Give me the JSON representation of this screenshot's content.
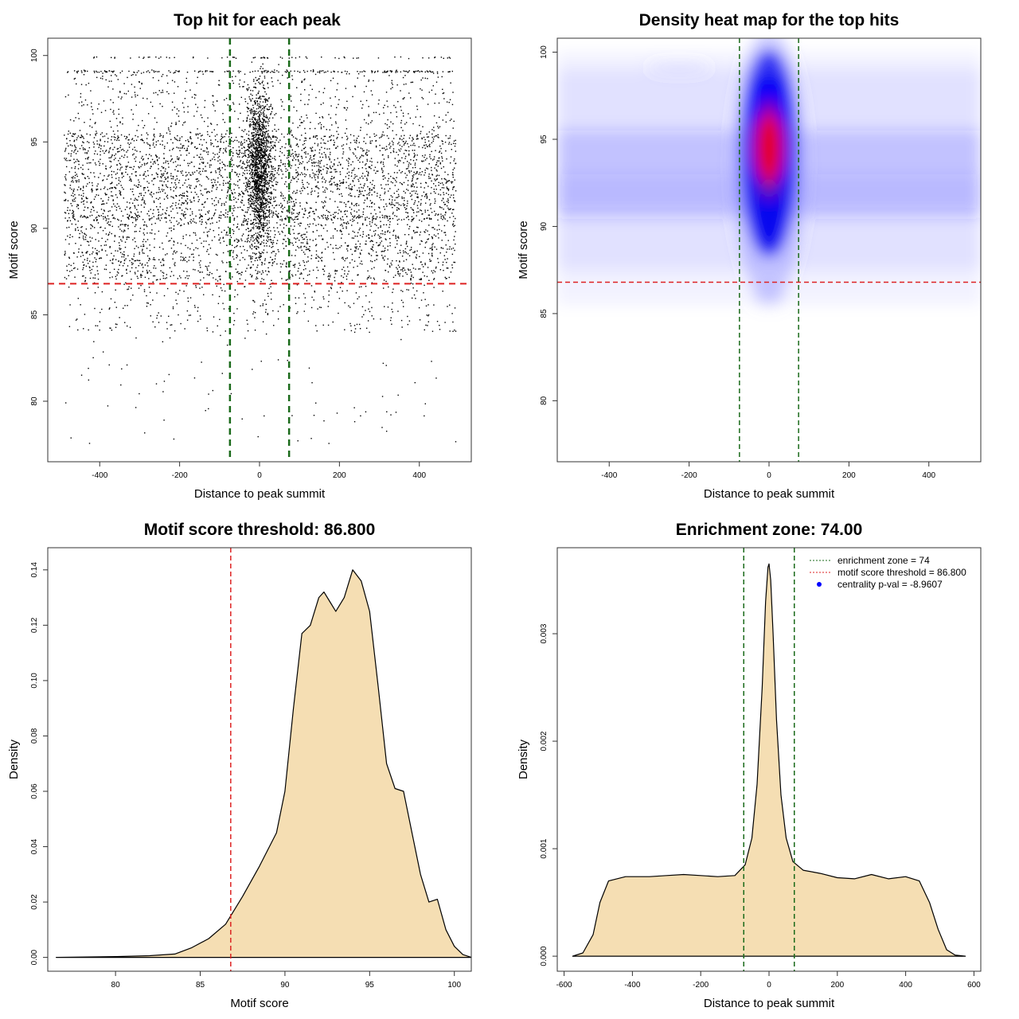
{
  "chart_data": [
    {
      "id": "scatter",
      "type": "scatter",
      "title": "Top hit for each peak",
      "xlabel": "Distance to peak summit",
      "ylabel": "Motif score",
      "xlim": [
        -530,
        530
      ],
      "ylim": [
        76.5,
        101
      ],
      "xticks": [
        -400,
        -200,
        0,
        200,
        400
      ],
      "yticks": [
        80,
        85,
        90,
        95,
        100
      ],
      "x_range_of_points": [
        -490,
        490
      ],
      "y_mode_band": [
        90.5,
        95.5
      ],
      "enrichment_zone": 74,
      "score_threshold": 86.8,
      "point_color": "#000000",
      "vline_color": "#1a6a1a",
      "hline_color": "#dd2222"
    },
    {
      "id": "heatmap",
      "type": "heatmap",
      "title": "Density heat map for the top hits",
      "xlabel": "Distance to peak summit",
      "ylabel": "Motif score",
      "xlim": [
        -530,
        530
      ],
      "ylim": [
        76.5,
        100.8
      ],
      "xticks": [
        -400,
        -200,
        0,
        200,
        400
      ],
      "yticks": [
        80,
        85,
        90,
        95,
        100
      ],
      "enrichment_zone": 74,
      "score_threshold": 86.8,
      "palette": [
        "#ffffff",
        "#0000ff",
        "#ff0000"
      ]
    },
    {
      "id": "score-density",
      "type": "area",
      "title": "Motif score threshold: 86.800",
      "xlabel": "Motif score",
      "ylabel": "Density",
      "xlim": [
        76.0,
        101.0
      ],
      "ylim": [
        -0.005,
        0.148
      ],
      "xticks": [
        80,
        85,
        90,
        95,
        100
      ],
      "yticks": [
        0.0,
        0.02,
        0.04,
        0.06,
        0.08,
        0.1,
        0.12,
        0.14
      ],
      "ytick_labels": [
        "0.00",
        "0.02",
        "0.04",
        "0.06",
        "0.08",
        "0.10",
        "0.12",
        "0.14"
      ],
      "threshold": 86.8,
      "fill": "#f5deb3",
      "points": [
        [
          76.5,
          0
        ],
        [
          80,
          0.0003
        ],
        [
          82,
          0.0006
        ],
        [
          83.5,
          0.0012
        ],
        [
          84.5,
          0.0035
        ],
        [
          85.5,
          0.0068
        ],
        [
          86.5,
          0.012
        ],
        [
          87.5,
          0.022
        ],
        [
          88.5,
          0.033
        ],
        [
          89.5,
          0.045
        ],
        [
          90,
          0.06
        ],
        [
          90.5,
          0.09
        ],
        [
          91,
          0.117
        ],
        [
          91.5,
          0.12
        ],
        [
          92,
          0.13
        ],
        [
          92.3,
          0.132
        ],
        [
          92.7,
          0.128
        ],
        [
          93,
          0.125
        ],
        [
          93.5,
          0.13
        ],
        [
          94,
          0.14
        ],
        [
          94.5,
          0.136
        ],
        [
          95,
          0.125
        ],
        [
          95.5,
          0.098
        ],
        [
          96,
          0.07
        ],
        [
          96.5,
          0.061
        ],
        [
          97,
          0.06
        ],
        [
          97.5,
          0.045
        ],
        [
          98,
          0.03
        ],
        [
          98.5,
          0.02
        ],
        [
          99,
          0.021
        ],
        [
          99.5,
          0.01
        ],
        [
          100,
          0.004
        ],
        [
          100.5,
          0.001
        ],
        [
          101,
          0
        ]
      ]
    },
    {
      "id": "distance-density",
      "type": "area",
      "title": "Enrichment zone: 74.00",
      "xlabel": "Distance to peak summit",
      "ylabel": "Density",
      "xlim": [
        -620,
        620
      ],
      "ylim": [
        -0.00014,
        0.0038
      ],
      "xticks": [
        -600,
        -400,
        -200,
        0,
        200,
        400,
        600
      ],
      "yticks": [
        0.0,
        0.001,
        0.002,
        0.003
      ],
      "ytick_labels": [
        "0.000",
        "0.001",
        "0.002",
        "0.003"
      ],
      "enrichment_zone": 74,
      "fill": "#f5deb3",
      "points": [
        [
          -575,
          0
        ],
        [
          -545,
          3e-05
        ],
        [
          -515,
          0.0002
        ],
        [
          -495,
          0.0005
        ],
        [
          -470,
          0.0007
        ],
        [
          -420,
          0.00074
        ],
        [
          -350,
          0.00074
        ],
        [
          -300,
          0.00075
        ],
        [
          -250,
          0.00076
        ],
        [
          -200,
          0.00075
        ],
        [
          -150,
          0.00074
        ],
        [
          -100,
          0.00075
        ],
        [
          -70,
          0.00085
        ],
        [
          -50,
          0.0011
        ],
        [
          -35,
          0.0016
        ],
        [
          -20,
          0.0025
        ],
        [
          -10,
          0.0033
        ],
        [
          -3,
          0.00362
        ],
        [
          0,
          0.00365
        ],
        [
          5,
          0.0035
        ],
        [
          12,
          0.003
        ],
        [
          22,
          0.0022
        ],
        [
          35,
          0.0015
        ],
        [
          50,
          0.0011
        ],
        [
          70,
          0.00088
        ],
        [
          100,
          0.0008
        ],
        [
          150,
          0.00077
        ],
        [
          200,
          0.00073
        ],
        [
          250,
          0.00072
        ],
        [
          300,
          0.00076
        ],
        [
          350,
          0.00072
        ],
        [
          400,
          0.00074
        ],
        [
          440,
          0.0007
        ],
        [
          470,
          0.0005
        ],
        [
          495,
          0.00025
        ],
        [
          520,
          6e-05
        ],
        [
          545,
          1e-05
        ],
        [
          575,
          0
        ]
      ],
      "legend": {
        "position": "top-right",
        "items": [
          {
            "label": "enrichment zone = 74",
            "color": "#1a6a1a",
            "style": "dotted-line"
          },
          {
            "label": "motif score threshold = 86.800",
            "color": "#dd2222",
            "style": "dotted-line"
          },
          {
            "label": "centrality p-val = -8.9607",
            "color": "#0000ff",
            "style": "dot"
          }
        ]
      }
    }
  ]
}
